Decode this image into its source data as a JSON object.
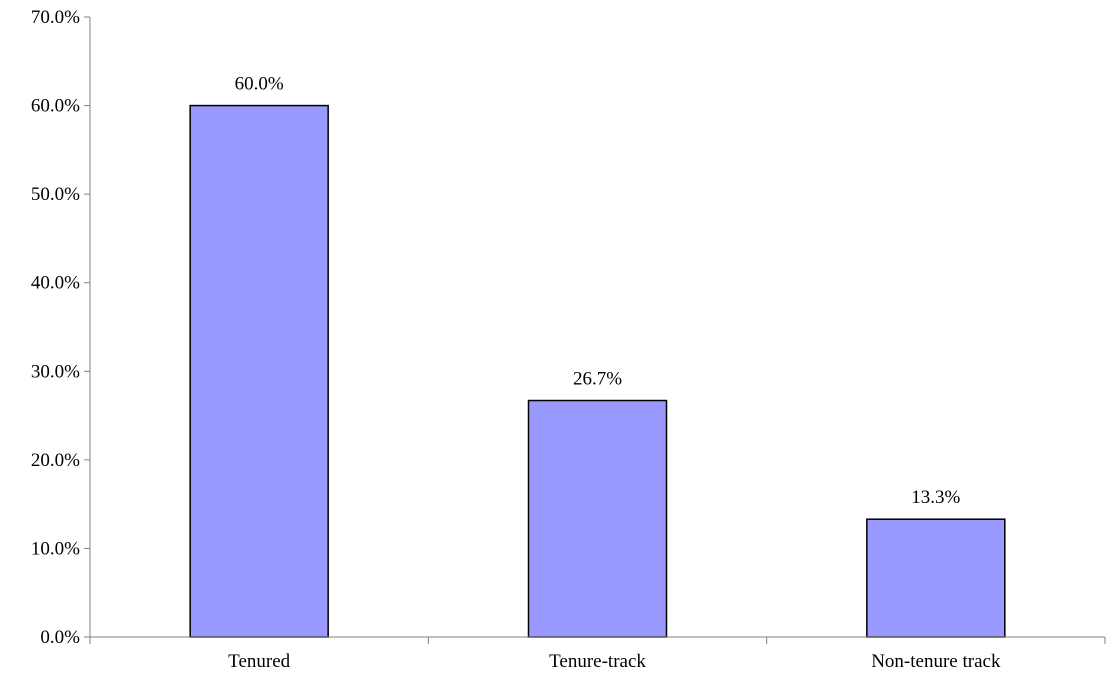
{
  "chart_data": {
    "type": "bar",
    "categories": [
      "Tenured",
      "Tenure-track",
      "Non-tenure track"
    ],
    "values": [
      60.0,
      26.7,
      13.3
    ],
    "data_labels": [
      "60.0%",
      "26.7%",
      "13.3%"
    ],
    "title": "",
    "xlabel": "",
    "ylabel": "",
    "ylim": [
      0,
      70
    ],
    "y_ticks": [
      0,
      10,
      20,
      30,
      40,
      50,
      60,
      70
    ],
    "y_tick_labels": [
      "0.0%",
      "10.0%",
      "20.0%",
      "30.0%",
      "40.0%",
      "50.0%",
      "60.0%",
      "70.0%"
    ],
    "grid": false,
    "legend": "none",
    "colors": {
      "bar_fill": "#9999ff",
      "bar_stroke": "#000000",
      "axis": "#808080"
    }
  }
}
